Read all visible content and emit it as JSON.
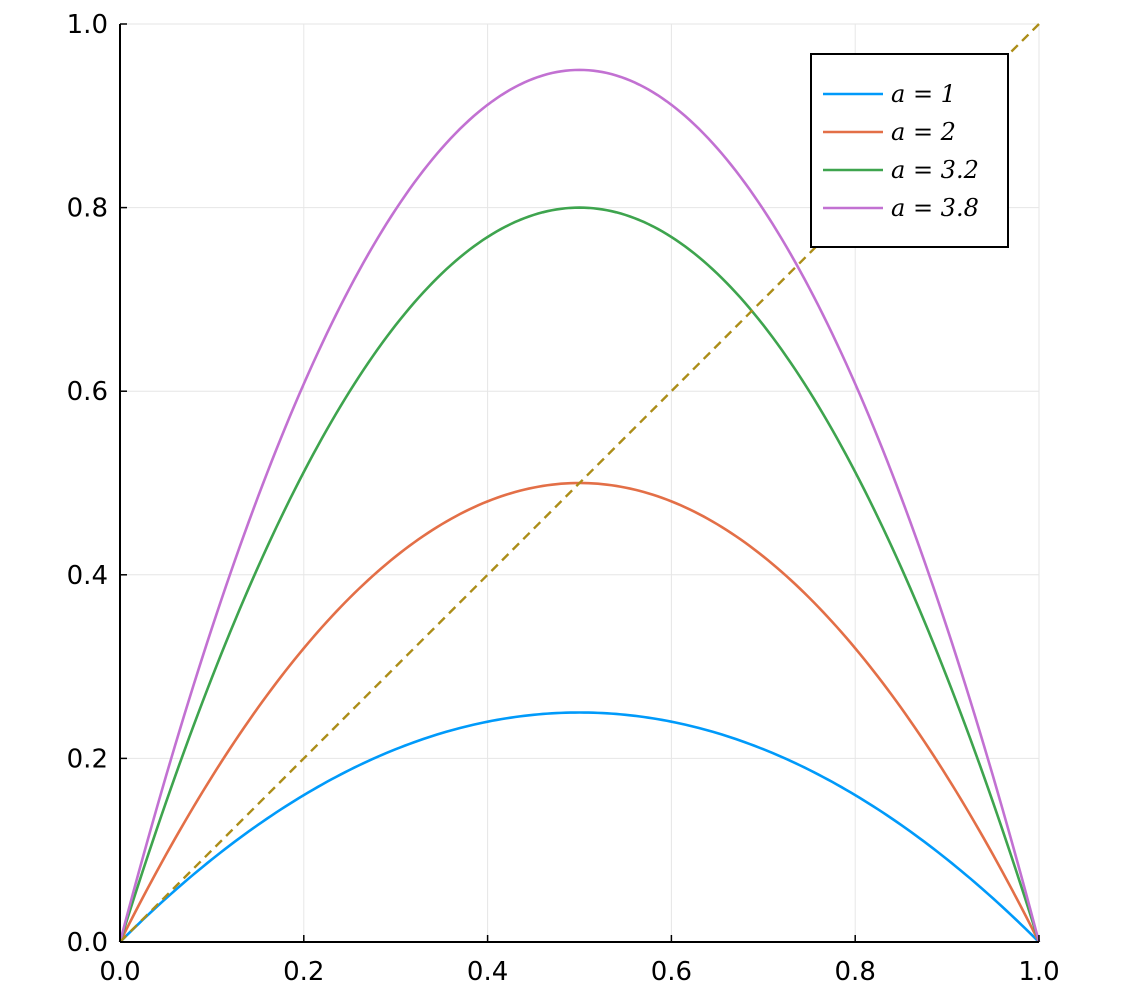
{
  "chart_data": {
    "type": "line",
    "title": "",
    "xlabel": "",
    "ylabel": "",
    "xlim": [
      0,
      1
    ],
    "ylim": [
      0,
      1
    ],
    "grid": true,
    "legend_position": "top-right",
    "x_ticks": [
      "0.0",
      "0.2",
      "0.4",
      "0.6",
      "0.8",
      "1.0"
    ],
    "y_ticks": [
      "0.0",
      "0.2",
      "0.4",
      "0.6",
      "0.8",
      "1.0"
    ],
    "x": [
      0.0,
      0.05,
      0.1,
      0.15,
      0.2,
      0.25,
      0.3,
      0.35,
      0.4,
      0.45,
      0.5,
      0.55,
      0.6,
      0.65,
      0.7,
      0.75,
      0.8,
      0.85,
      0.9,
      0.95,
      1.0
    ],
    "series": [
      {
        "name": "a = 1",
        "color": "#009AFA",
        "values": [
          0.0,
          0.0475,
          0.09,
          0.1275,
          0.16,
          0.1875,
          0.21,
          0.2275,
          0.24,
          0.2475,
          0.25,
          0.2475,
          0.24,
          0.2275,
          0.21,
          0.1875,
          0.16,
          0.1275,
          0.09,
          0.0475,
          0.0
        ]
      },
      {
        "name": "a = 2",
        "color": "#E36F47",
        "values": [
          0.0,
          0.095,
          0.18,
          0.255,
          0.32,
          0.375,
          0.42,
          0.455,
          0.48,
          0.495,
          0.5,
          0.495,
          0.48,
          0.455,
          0.42,
          0.375,
          0.32,
          0.255,
          0.18,
          0.095,
          0.0
        ]
      },
      {
        "name": "a = 3.2",
        "color": "#3EA44E",
        "values": [
          0.0,
          0.152,
          0.288,
          0.408,
          0.512,
          0.6,
          0.672,
          0.728,
          0.768,
          0.792,
          0.8,
          0.792,
          0.768,
          0.728,
          0.672,
          0.6,
          0.512,
          0.408,
          0.288,
          0.152,
          0.0
        ]
      },
      {
        "name": "a = 3.8",
        "color": "#C271D2",
        "values": [
          0.0,
          0.1805,
          0.342,
          0.4845,
          0.608,
          0.7125,
          0.798,
          0.8645,
          0.912,
          0.9405,
          0.95,
          0.9405,
          0.912,
          0.8645,
          0.798,
          0.7125,
          0.608,
          0.4845,
          0.342,
          0.1805,
          0.0
        ]
      }
    ],
    "reference_line": {
      "style": "dashed",
      "color": "#AC8D18",
      "points": [
        [
          0,
          0
        ],
        [
          1,
          1
        ]
      ]
    },
    "legend": [
      {
        "label": "a = 1",
        "symbol": "𝑎 = 1",
        "color": "#009AFA"
      },
      {
        "label": "a = 2",
        "symbol": "𝑎 = 2",
        "color": "#E36F47"
      },
      {
        "label": "a = 3.2",
        "symbol": "𝑎 = 3.2",
        "color": "#3EA44E"
      },
      {
        "label": "a = 3.8",
        "symbol": "𝑎 = 3.8",
        "color": "#C271D2"
      }
    ]
  }
}
